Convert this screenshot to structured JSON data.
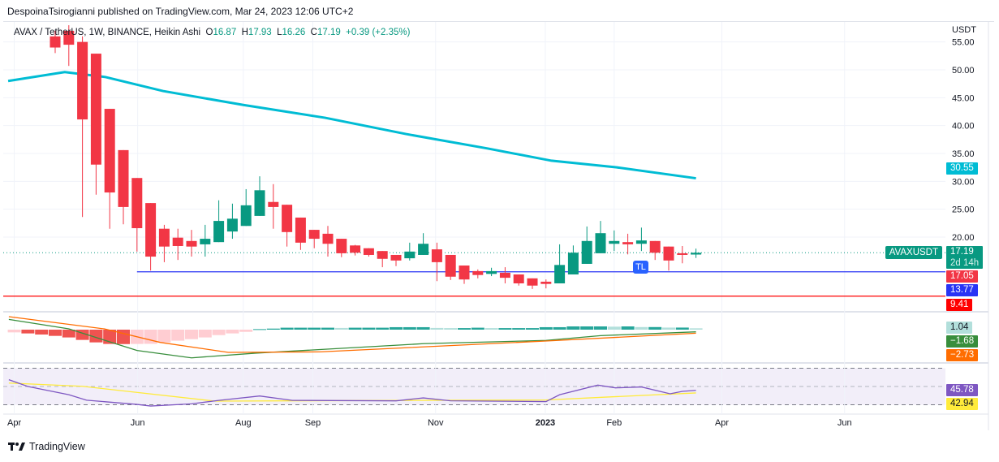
{
  "header": {
    "published": "DespoinaTsirogianni published on TradingView.com, Mar 24, 2023 12:06 UTC+2"
  },
  "legend": {
    "symbol": "AVAX / TetherUS, 1W, BINANCE, Heikin Ashi",
    "o_label": "O",
    "o": "16.87",
    "h_label": "H",
    "h": "17.93",
    "l_label": "L",
    "l": "16.26",
    "c_label": "C",
    "c": "17.19",
    "change": "+0.39 (+2.35%)"
  },
  "price_axis": {
    "currency": "USDT",
    "ticks": [
      "55.00",
      "50.00",
      "45.00",
      "40.00",
      "35.00",
      "30.00",
      "25.00",
      "20.00"
    ]
  },
  "time_axis": {
    "labels": [
      {
        "text": "Apr",
        "week": -3.0,
        "bold": false
      },
      {
        "text": "Jun",
        "week": 6.05,
        "bold": false
      },
      {
        "text": "Aug",
        "week": 13.8,
        "bold": false
      },
      {
        "text": "Sep",
        "week": 18.9,
        "bold": false
      },
      {
        "text": "Nov",
        "week": 27.9,
        "bold": false
      },
      {
        "text": "2023",
        "week": 35.95,
        "bold": true
      },
      {
        "text": "Feb",
        "week": 41.0,
        "bold": false
      },
      {
        "text": "Apr",
        "week": 48.9,
        "bold": false
      },
      {
        "text": "Jun",
        "week": 57.9,
        "bold": false
      }
    ]
  },
  "tags": {
    "symbol": "AVAXUSDT",
    "last": "17.19",
    "countdown": "2d 14h",
    "ma": "30.55",
    "line_a": "17.05",
    "support": "13.77",
    "low_line": "9.41",
    "macd_hist": "1.04",
    "macd": "−1.68",
    "signal": "−2.73",
    "rsi": "45.78",
    "rsi_ma": "42.94"
  },
  "drawing": {
    "tl_label": "TL"
  },
  "colors": {
    "up": "#089981",
    "down": "#f23645",
    "ma": "#00bcd4",
    "support": "#2934f5",
    "low": "#ff0000",
    "macd": "#388e3c",
    "signal": "#ff6d00",
    "rsi": "#7e57c2",
    "rsi_ma": "#ffeb3b"
  },
  "chart_data": {
    "type": "candlestick",
    "title": "AVAX / TetherUS, 1W, BINANCE, Heikin Ashi",
    "ylim": [
      7,
      57
    ],
    "candles_ohlc": [
      [
        56,
        57,
        53,
        54
      ],
      [
        57,
        58,
        50.7,
        54.5
      ],
      [
        55,
        56,
        23.6,
        41.1
      ],
      [
        52.9,
        52.9,
        27.6,
        33.0
      ],
      [
        43.0,
        43.0,
        21.5,
        28.0
      ],
      [
        35.6,
        35.6,
        22.3,
        25.4
      ],
      [
        30.6,
        30.6,
        17.4,
        21.6
      ],
      [
        26.1,
        26.1,
        14.0,
        16.5
      ],
      [
        21.5,
        22.2,
        15.5,
        18.3
      ],
      [
        19.9,
        21.5,
        15.9,
        18.4
      ],
      [
        19.3,
        21.3,
        16.5,
        18.3
      ],
      [
        18.7,
        22.2,
        16.5,
        19.7
      ],
      [
        19.1,
        26.6,
        19.1,
        22.9
      ],
      [
        21.0,
        26.0,
        19.7,
        23.3
      ],
      [
        22.0,
        28.6,
        22.0,
        25.7
      ],
      [
        23.8,
        30.9,
        23.8,
        28.4
      ],
      [
        26.3,
        29.5,
        21.5,
        25.4
      ],
      [
        25.8,
        25.8,
        18.3,
        20.9
      ],
      [
        23.5,
        23.5,
        17.7,
        19.0
      ],
      [
        21.3,
        21.3,
        18.0,
        19.7
      ],
      [
        20.6,
        22.0,
        16.5,
        18.8
      ],
      [
        19.7,
        19.7,
        16.4,
        17.1
      ],
      [
        18.5,
        18.6,
        16.7,
        17.2
      ],
      [
        18.0,
        18.0,
        16.5,
        16.8
      ],
      [
        17.5,
        17.5,
        14.6,
        16.1
      ],
      [
        16.8,
        16.8,
        14.8,
        15.8
      ],
      [
        16.2,
        19.0,
        15.8,
        17.4
      ],
      [
        16.8,
        20.7,
        16.8,
        18.8
      ],
      [
        17.8,
        19.0,
        12.1,
        15.5
      ],
      [
        16.8,
        16.8,
        12.3,
        12.9
      ],
      [
        14.9,
        14.9,
        11.6,
        12.4
      ],
      [
        13.9,
        14.2,
        12.6,
        13.2
      ],
      [
        13.4,
        14.5,
        13.0,
        13.9
      ],
      [
        13.6,
        14.6,
        11.7,
        12.7
      ],
      [
        13.3,
        13.3,
        11.3,
        11.7
      ],
      [
        12.6,
        12.6,
        10.7,
        11.3
      ],
      [
        12.0,
        12.4,
        10.8,
        11.6
      ],
      [
        11.7,
        18.7,
        11.7,
        15.0
      ],
      [
        13.3,
        18.5,
        13.3,
        17.2
      ],
      [
        15.2,
        21.9,
        15.2,
        19.3
      ],
      [
        17.1,
        22.9,
        17.1,
        20.7
      ],
      [
        18.8,
        21.2,
        17.5,
        19.3
      ],
      [
        19.1,
        20.6,
        16.9,
        18.7
      ],
      [
        18.8,
        21.7,
        17.5,
        19.4
      ],
      [
        19.3,
        19.3,
        15.9,
        17.2
      ],
      [
        18.3,
        18.3,
        14.0,
        15.8
      ],
      [
        17.1,
        18.4,
        15.3,
        16.8
      ],
      [
        16.87,
        17.93,
        16.26,
        17.19
      ]
    ],
    "ma_line": [
      [
        -3.45,
        48.0
      ],
      [
        0.7,
        49.6
      ],
      [
        3.7,
        48.7
      ],
      [
        7.9,
        46.2
      ],
      [
        13.8,
        43.7
      ],
      [
        19.8,
        41.4
      ],
      [
        25.7,
        38.5
      ],
      [
        31.7,
        35.9
      ],
      [
        36.4,
        33.7
      ],
      [
        41.2,
        32.5
      ],
      [
        47,
        30.55
      ]
    ],
    "hlines": [
      {
        "price": 13.77,
        "from_week": 6
      },
      {
        "price": 9.41,
        "from_week": -5
      }
    ],
    "current_price": 17.19,
    "macd": {
      "histogram_start_week": -3,
      "histogram": [
        -2.1,
        -2.9,
        -3.75,
        -4.8,
        -6.0,
        -7.9,
        -9.8,
        -11.0,
        -11.1,
        -11.0,
        -10.9,
        -9.8,
        -8.5,
        -7.3,
        -6.0,
        -4.2,
        -2.9,
        -1.7,
        0.4,
        0.8,
        1.5,
        1.5,
        1.5,
        1.5,
        1.3,
        1.5,
        1.5,
        1.5,
        1.9,
        1.9,
        1.9,
        1.3,
        1.2,
        1.2,
        1.5,
        1.2,
        1.2,
        1.2,
        1.2,
        1.9,
        1.9,
        2.5,
        2.5,
        2.5,
        2.3,
        2.5,
        2.0,
        2.0,
        1.6,
        1.6,
        1.04
      ],
      "macd_line": [
        [
          -3.4,
          7.9
        ],
        [
          1,
          0.6
        ],
        [
          6,
          -16
        ],
        [
          10,
          -21.7
        ],
        [
          14.7,
          -18.1
        ],
        [
          27,
          -10.8
        ],
        [
          36,
          -8.3
        ],
        [
          40,
          -4.6
        ],
        [
          47,
          -1.68
        ]
      ],
      "signal_line": [
        [
          -3.4,
          10
        ],
        [
          3.6,
          0.6
        ],
        [
          7.7,
          -9.8
        ],
        [
          12.7,
          -17.5
        ],
        [
          19.4,
          -17.1
        ],
        [
          36,
          -8.75
        ],
        [
          47,
          -2.73
        ]
      ]
    },
    "rsi": {
      "bands": [
        70,
        50,
        30
      ],
      "rsi_line": [
        [
          -3.4,
          57.4
        ],
        [
          -2,
          50
        ],
        [
          1,
          41
        ],
        [
          2.3,
          35
        ],
        [
          6,
          30.4
        ],
        [
          7,
          28.6
        ],
        [
          10,
          31
        ],
        [
          12,
          34.8
        ],
        [
          15,
          39.6
        ],
        [
          17.4,
          34.8
        ],
        [
          25,
          34.3
        ],
        [
          27,
          37.5
        ],
        [
          29,
          34.3
        ],
        [
          36,
          33.5
        ],
        [
          37,
          41
        ],
        [
          39.8,
          51.5
        ],
        [
          41.1,
          48.5
        ],
        [
          43,
          49.5
        ],
        [
          45.1,
          42
        ],
        [
          46,
          44.7
        ],
        [
          47,
          45.78
        ]
      ],
      "ma_line": [
        [
          -3.4,
          53.8
        ],
        [
          2,
          50.2
        ],
        [
          11.7,
          34
        ],
        [
          26,
          34.8
        ],
        [
          36,
          35.2
        ],
        [
          40.4,
          38.4
        ],
        [
          47,
          42.94
        ]
      ]
    }
  },
  "footer": {
    "brand": "TradingView"
  }
}
